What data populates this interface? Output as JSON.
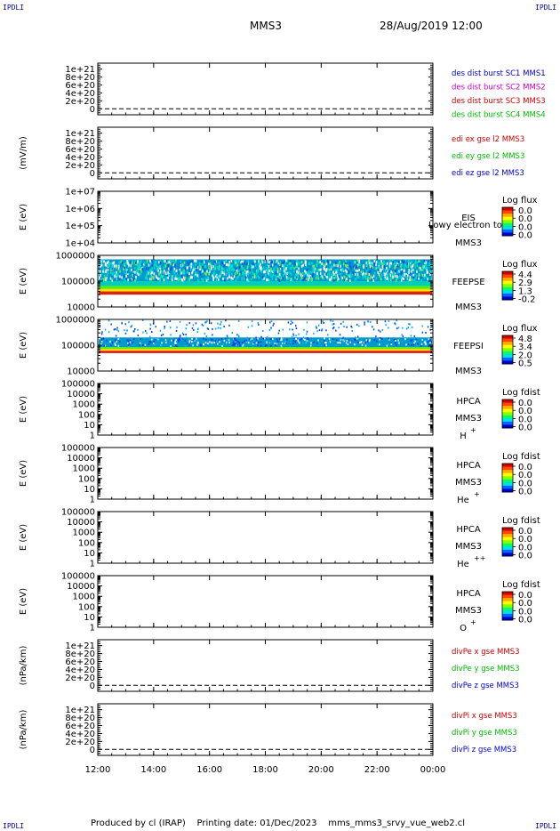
{
  "header": {
    "corner_tl": "IPDLI",
    "corner_tr": "IPDLI",
    "corner_bl": "IPDLI",
    "corner_br": "IPDLI",
    "spacecraft": "MMS3",
    "datetime": "28/Aug/2019 12:00"
  },
  "footer": {
    "produced_by": "Produced by cl (IRAP)",
    "printing_date": "Printing date: 01/Dec/2023",
    "filename": "mms_mms3_srvy_vue_web2.cl"
  },
  "colors": {
    "red": "#cc0000",
    "magenta": "#cc00cc",
    "blue": "#0000cc",
    "green": "#00bb00"
  },
  "x_axis": {
    "ticks": [
      "12:00",
      "14:00",
      "16:00",
      "18:00",
      "20:00",
      "22:00",
      "00:00"
    ]
  },
  "chart_data": [
    {
      "type": "line",
      "ylabel": "",
      "ticks": [
        "1e+21",
        "8e+20",
        "6e+20",
        "4e+20",
        "2e+20",
        "0"
      ],
      "tick_values": [
        1e+21,
        8e+20,
        6e+20,
        4e+20,
        2e+20,
        0
      ],
      "ylim": [
        -1.5e+20,
        1.15e+21
      ],
      "zero_line": true,
      "legend": [
        {
          "text": "des dist burst SC1 MMS1",
          "color": "blue"
        },
        {
          "text": "des dist burst SC2 MMS2",
          "color": "magenta"
        },
        {
          "text": "des dist burst SC3 MMS3",
          "color": "red"
        },
        {
          "text": "des dist burst SC4 MMS4",
          "color": "green"
        }
      ]
    },
    {
      "type": "line",
      "ylabel": "(mV/m)",
      "ticks": [
        "1e+21",
        "8e+20",
        "6e+20",
        "4e+20",
        "2e+20",
        "0"
      ],
      "tick_values": [
        1e+21,
        8e+20,
        6e+20,
        4e+20,
        2e+20,
        0
      ],
      "ylim": [
        -1.5e+20,
        1.15e+21
      ],
      "zero_line": true,
      "legend": [
        {
          "text": "edi ex gse l2 MMS3",
          "color": "red"
        },
        {
          "text": "edi ey gse l2 MMS3",
          "color": "green"
        },
        {
          "text": "edi ez gse l2 MMS3",
          "color": "blue"
        }
      ]
    },
    {
      "type": "heatmap",
      "ylabel": "E (eV)",
      "ticks": [
        "1e+07",
        "1e+06",
        "1e+05",
        "1e+04"
      ],
      "tick_values": [
        10000000.0,
        1000000.0,
        100000.0,
        10000.0
      ],
      "ylim": [
        10000.0,
        10000000.0
      ],
      "log": true,
      "label": "EIS",
      "label2": "MMS3",
      "overlay": "Lowy electron to",
      "cb_title": "Log flux",
      "cb_values": [
        "0.0",
        "0.0",
        "0.0",
        "0.0"
      ],
      "bands": []
    },
    {
      "type": "heatmap",
      "ylabel": "E (eV)",
      "ticks": [
        "1000000",
        "100000",
        "10000"
      ],
      "tick_values": [
        1000000.0,
        100000.0,
        10000.0
      ],
      "ylim": [
        10000.0,
        1000000.0
      ],
      "log": true,
      "label": "FEEPSE",
      "label2": "MMS3",
      "cb_title": "Log flux",
      "cb_values": [
        "4.4",
        "2.9",
        "1.3",
        "-0.2"
      ],
      "bands": [
        {
          "from": 30000,
          "to": 40000,
          "color": "#dd2200"
        },
        {
          "from": 40000,
          "to": 50000,
          "color": "#ffdd00"
        },
        {
          "from": 50000,
          "to": 65000,
          "color": "#55ee00"
        },
        {
          "from": 65000,
          "to": 100000,
          "color": "#00ccbb"
        },
        {
          "from": 100000,
          "to": 700000,
          "color": "#0099cc",
          "speckle": "#00ddcc"
        }
      ]
    },
    {
      "type": "heatmap",
      "ylabel": "E (eV)",
      "ticks": [
        "1000000",
        "100000",
        "10000"
      ],
      "tick_values": [
        1000000.0,
        100000.0,
        10000.0
      ],
      "ylim": [
        10000.0,
        1000000.0
      ],
      "log": true,
      "label": "FEEPSI",
      "label2": "MMS3",
      "cb_title": "Log flux",
      "cb_values": [
        "4.8",
        "3.4",
        "2.0",
        "0.5"
      ],
      "bands": [
        {
          "from": 50000,
          "to": 58000,
          "color": "#cc0000"
        },
        {
          "from": 58000,
          "to": 64000,
          "color": "#ff6600"
        },
        {
          "from": 64000,
          "to": 72000,
          "color": "#ffdd00"
        },
        {
          "from": 72000,
          "to": 85000,
          "color": "#55ee00"
        },
        {
          "from": 85000,
          "to": 200000,
          "color": "#0099cc",
          "speckle": "#0033dd",
          "sparse": true
        }
      ]
    },
    {
      "type": "heatmap",
      "ylabel": "E (eV)",
      "ticks": [
        "100000",
        "10000",
        "1000",
        "100",
        "10",
        "1"
      ],
      "tick_values": [
        100000.0,
        10000.0,
        1000.0,
        100.0,
        10.0,
        1
      ],
      "ylim": [
        1,
        100000.0
      ],
      "log": true,
      "label": "HPCA",
      "label2": "MMS3",
      "species": "H",
      "charge": "+",
      "cb_title": "Log fdist",
      "cb_values": [
        "0.0",
        "0.0",
        "0.0",
        "0.0"
      ],
      "bands": []
    },
    {
      "type": "heatmap",
      "ylabel": "E (eV)",
      "ticks": [
        "100000",
        "10000",
        "1000",
        "100",
        "10",
        "1"
      ],
      "tick_values": [
        100000.0,
        10000.0,
        1000.0,
        100.0,
        10.0,
        1
      ],
      "ylim": [
        1,
        100000.0
      ],
      "log": true,
      "label": "HPCA",
      "label2": "MMS3",
      "species": "He",
      "charge": "+",
      "cb_title": "Log fdist",
      "cb_values": [
        "0.0",
        "0.0",
        "0.0",
        "0.0"
      ],
      "bands": []
    },
    {
      "type": "heatmap",
      "ylabel": "E (eV)",
      "ticks": [
        "100000",
        "10000",
        "1000",
        "100",
        "10",
        "1"
      ],
      "tick_values": [
        100000.0,
        10000.0,
        1000.0,
        100.0,
        10.0,
        1
      ],
      "ylim": [
        1,
        100000.0
      ],
      "log": true,
      "label": "HPCA",
      "label2": "MMS3",
      "species": "He",
      "charge": "++",
      "cb_title": "Log fdist",
      "cb_values": [
        "0.0",
        "0.0",
        "0.0",
        "0.0"
      ],
      "bands": []
    },
    {
      "type": "heatmap",
      "ylabel": "E (eV)",
      "ticks": [
        "100000",
        "10000",
        "1000",
        "100",
        "10",
        "1"
      ],
      "tick_values": [
        100000.0,
        10000.0,
        1000.0,
        100.0,
        10.0,
        1
      ],
      "ylim": [
        1,
        100000.0
      ],
      "log": true,
      "label": "HPCA",
      "label2": "MMS3",
      "species": "O",
      "charge": "+",
      "cb_title": "Log fdist",
      "cb_values": [
        "0.0",
        "0.0",
        "0.0",
        "0.0"
      ],
      "bands": []
    },
    {
      "type": "line",
      "ylabel": "(nPa/km)",
      "ticks": [
        "1e+21",
        "8e+20",
        "6e+20",
        "4e+20",
        "2e+20",
        "0"
      ],
      "tick_values": [
        1e+21,
        8e+20,
        6e+20,
        4e+20,
        2e+20,
        0
      ],
      "ylim": [
        -1.5e+20,
        1.15e+21
      ],
      "zero_line": true,
      "legend": [
        {
          "text": "divPe x gse MMS3",
          "color": "red"
        },
        {
          "text": "divPe y gse MMS3",
          "color": "green"
        },
        {
          "text": "divPe z gse MMS3",
          "color": "blue"
        }
      ]
    },
    {
      "type": "line",
      "ylabel": "(nPa/km)",
      "ticks": [
        "1e+21",
        "8e+20",
        "6e+20",
        "4e+20",
        "2e+20",
        "0"
      ],
      "tick_values": [
        1e+21,
        8e+20,
        6e+20,
        4e+20,
        2e+20,
        0
      ],
      "ylim": [
        -1.5e+20,
        1.15e+21
      ],
      "zero_line": true,
      "legend": [
        {
          "text": "divPi x gse MMS3",
          "color": "red"
        },
        {
          "text": "divPi y gse MMS3",
          "color": "green"
        },
        {
          "text": "divPi z gse MMS3",
          "color": "blue"
        }
      ]
    }
  ]
}
